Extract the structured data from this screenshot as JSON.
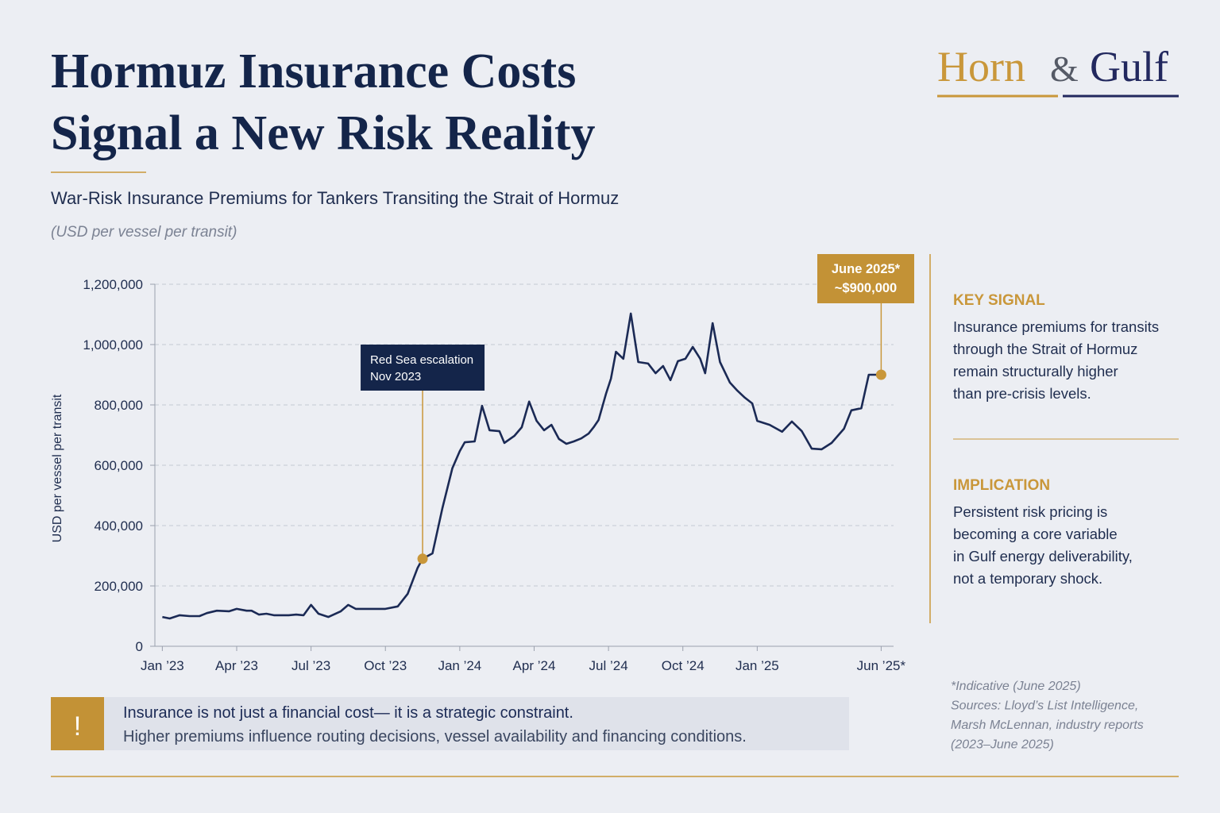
{
  "header": {
    "title_lines": [
      "Hormuz Insurance Costs",
      "Signal a New Risk Reality"
    ],
    "subtitle": "War-Risk Insurance Premiums for Tankers Transiting the Strait of Hormuz",
    "unit_note": "(USD per vessel per transit)"
  },
  "brand": {
    "left": "Horn",
    "amp": "&",
    "right": "Gulf"
  },
  "chart_data": {
    "type": "line",
    "y_label": "USD per vessel per transit",
    "color": "#1b2a55",
    "marker_color": "#c9973a",
    "grid": true,
    "xlim": [
      -0.3,
      29.5
    ],
    "xticks": [
      {
        "value": 0,
        "label": "Jan ’23"
      },
      {
        "value": 3,
        "label": "Apr ’23"
      },
      {
        "value": 6,
        "label": "Jul ’23"
      },
      {
        "value": 9,
        "label": "Oct ’23"
      },
      {
        "value": 12,
        "label": "Jan ’24"
      },
      {
        "value": 15,
        "label": "Apr ’24"
      },
      {
        "value": 18,
        "label": "Jul ’24"
      },
      {
        "value": 21,
        "label": "Oct ’24"
      },
      {
        "value": 24,
        "label": "Jan ’25"
      },
      {
        "value": 29,
        "label": "Jun ’25*"
      }
    ],
    "ylim": [
      0,
      1200000
    ],
    "yticks": [
      0,
      {
        "value": 200000,
        "label": "200,000"
      },
      {
        "value": 400000,
        "label": "400,000"
      },
      {
        "value": 600000,
        "label": "600,000"
      },
      {
        "value": 800000,
        "label": "800,000"
      },
      {
        "value": 1000000,
        "label": "1,000,000"
      },
      {
        "value": 1200000,
        "label": "1,200,000"
      }
    ],
    "x": [
      0,
      0.3,
      0.7,
      1.1,
      1.5,
      1.8,
      2.2,
      2.7,
      3.0,
      3.4,
      3.6,
      3.9,
      4.2,
      4.5,
      5.1,
      5.4,
      5.7,
      6.0,
      6.3,
      6.7,
      7.2,
      7.5,
      7.8,
      8.4,
      9.0,
      9.5,
      9.9,
      10.3,
      10.5,
      10.9,
      11.3,
      11.7,
      12.0,
      12.2,
      12.6,
      12.9,
      13.2,
      13.6,
      13.8,
      14.2,
      14.5,
      14.8,
      15.1,
      15.4,
      15.7,
      16.0,
      16.3,
      16.6,
      16.9,
      17.2,
      17.4,
      17.6,
      17.9,
      18.1,
      18.3,
      18.6,
      18.9,
      19.2,
      19.6,
      19.9,
      20.2,
      20.5,
      20.8,
      21.1,
      21.4,
      21.7,
      21.9,
      22.2,
      22.5,
      22.9,
      23.2,
      23.5,
      23.8,
      24.0,
      24.5,
      25.0,
      25.4,
      25.8,
      26.2,
      26.6,
      27.0,
      27.5,
      27.8,
      28.2,
      28.5,
      29.0
    ],
    "values": [
      97000,
      92000,
      103000,
      100000,
      100000,
      110000,
      118000,
      116000,
      124000,
      118000,
      118000,
      105000,
      108000,
      103000,
      103000,
      105000,
      103000,
      137000,
      108000,
      97000,
      116000,
      137000,
      124000,
      124000,
      124000,
      132000,
      174000,
      260000,
      290000,
      308000,
      458000,
      590000,
      647000,
      676000,
      679000,
      797000,
      716000,
      713000,
      674000,
      697000,
      726000,
      811000,
      747000,
      716000,
      734000,
      687000,
      671000,
      679000,
      689000,
      705000,
      726000,
      750000,
      837000,
      887000,
      976000,
      953000,
      1103000,
      942000,
      937000,
      905000,
      929000,
      882000,
      945000,
      953000,
      992000,
      953000,
      905000,
      1071000,
      942000,
      874000,
      847000,
      824000,
      805000,
      747000,
      734000,
      711000,
      745000,
      713000,
      655000,
      653000,
      674000,
      721000,
      782000,
      789000,
      900000,
      900000
    ],
    "annotations": [
      {
        "lines": [
          "Red Sea escalation",
          "Nov 2023"
        ],
        "x": 10.5,
        "y": 290000
      },
      {
        "lines": [
          "June 2025*",
          "~$900,000"
        ],
        "x": 29,
        "y": 900000
      }
    ]
  },
  "panel": {
    "key_signal": {
      "heading": "KEY SIGNAL",
      "lines": [
        "Insurance premiums for transits",
        "through the Strait of Hormuz",
        "remain structurally higher",
        "than pre-crisis levels."
      ]
    },
    "implication": {
      "heading": "IMPLICATION",
      "lines": [
        "Persistent risk pricing is",
        "becoming a core variable",
        "in Gulf energy deliverability,",
        "not a temporary shock."
      ]
    }
  },
  "footnote": [
    "*Indicative (June 2025)",
    "Sources: Lloyd’s List Intelligence,",
    "Marsh McLennan, industry reports",
    "(2023–June 2025)"
  ],
  "callout": {
    "icon": "!",
    "lines": [
      "Insurance is not just a financial cost— it is a strategic constraint.",
      "Higher premiums influence routing decisions, vessel availability and financing conditions."
    ]
  }
}
